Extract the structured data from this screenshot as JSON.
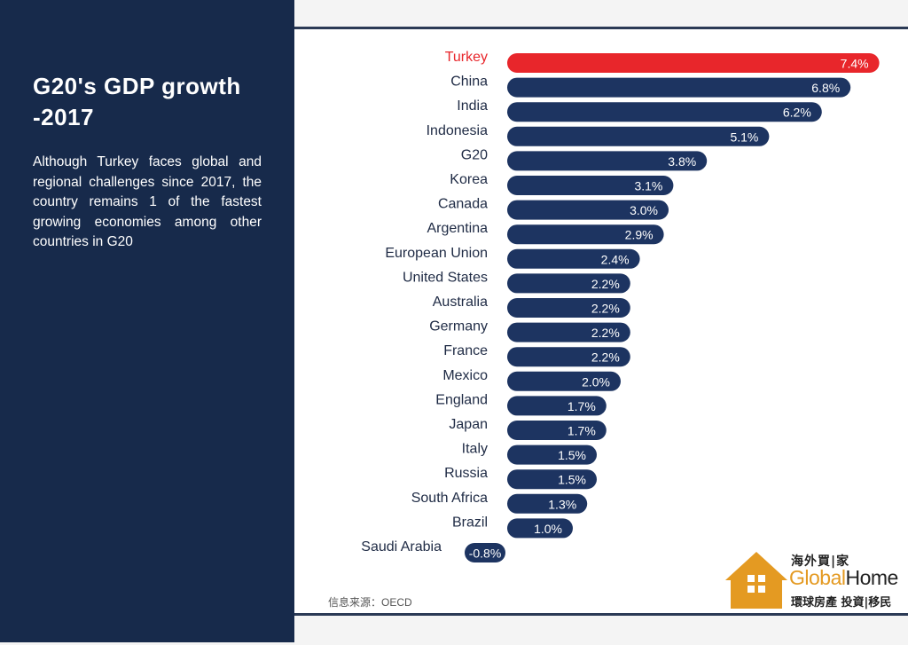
{
  "sidebar": {
    "title": "G20's GDP growth -2017",
    "description": "Although Turkey faces global and regional challenges since 2017, the country remains 1 of the fastest growing economies among other countries in G20"
  },
  "source": "信息来源：OECD",
  "logo": {
    "chinese_top": "海外買|家",
    "brand_global": "Global",
    "brand_home": "Home",
    "chinese_bottom": "環球房產 投資|移民",
    "accent_color": "#e49a22"
  },
  "colors": {
    "sidebar_bg": "#172a4b",
    "bar": "#1d3461",
    "highlight": "#e8262b"
  },
  "chart_data": {
    "type": "bar",
    "orientation": "horizontal",
    "categories": [
      "Turkey",
      "China",
      "India",
      "Indonesia",
      "G20",
      "Korea",
      "Canada",
      "Argentina",
      "European Union",
      "United States",
      "Australia",
      "Germany",
      "France",
      "Mexico",
      "England",
      "Japan",
      "Italy",
      "Russia",
      "South Africa",
      "Brazil",
      "Saudi Arabia"
    ],
    "values": [
      7.4,
      6.8,
      6.2,
      5.1,
      3.8,
      3.1,
      3.0,
      2.9,
      2.4,
      2.2,
      2.2,
      2.2,
      2.2,
      2.0,
      1.7,
      1.7,
      1.5,
      1.5,
      1.3,
      1.0,
      -0.8
    ],
    "value_labels": [
      "7.4%",
      "6.8%",
      "6.2%",
      "5.1%",
      "3.8%",
      "3.1%",
      "3.0%",
      "2.9%",
      "2.4%",
      "2.2%",
      "2.2%",
      "2.2%",
      "2.2%",
      "2.0%",
      "1.7%",
      "1.7%",
      "1.5%",
      "1.5%",
      "1.3%",
      "1.0%",
      "-0.8%"
    ],
    "highlight_category": "Turkey",
    "unit": "%",
    "grid": false,
    "legend": "none"
  }
}
